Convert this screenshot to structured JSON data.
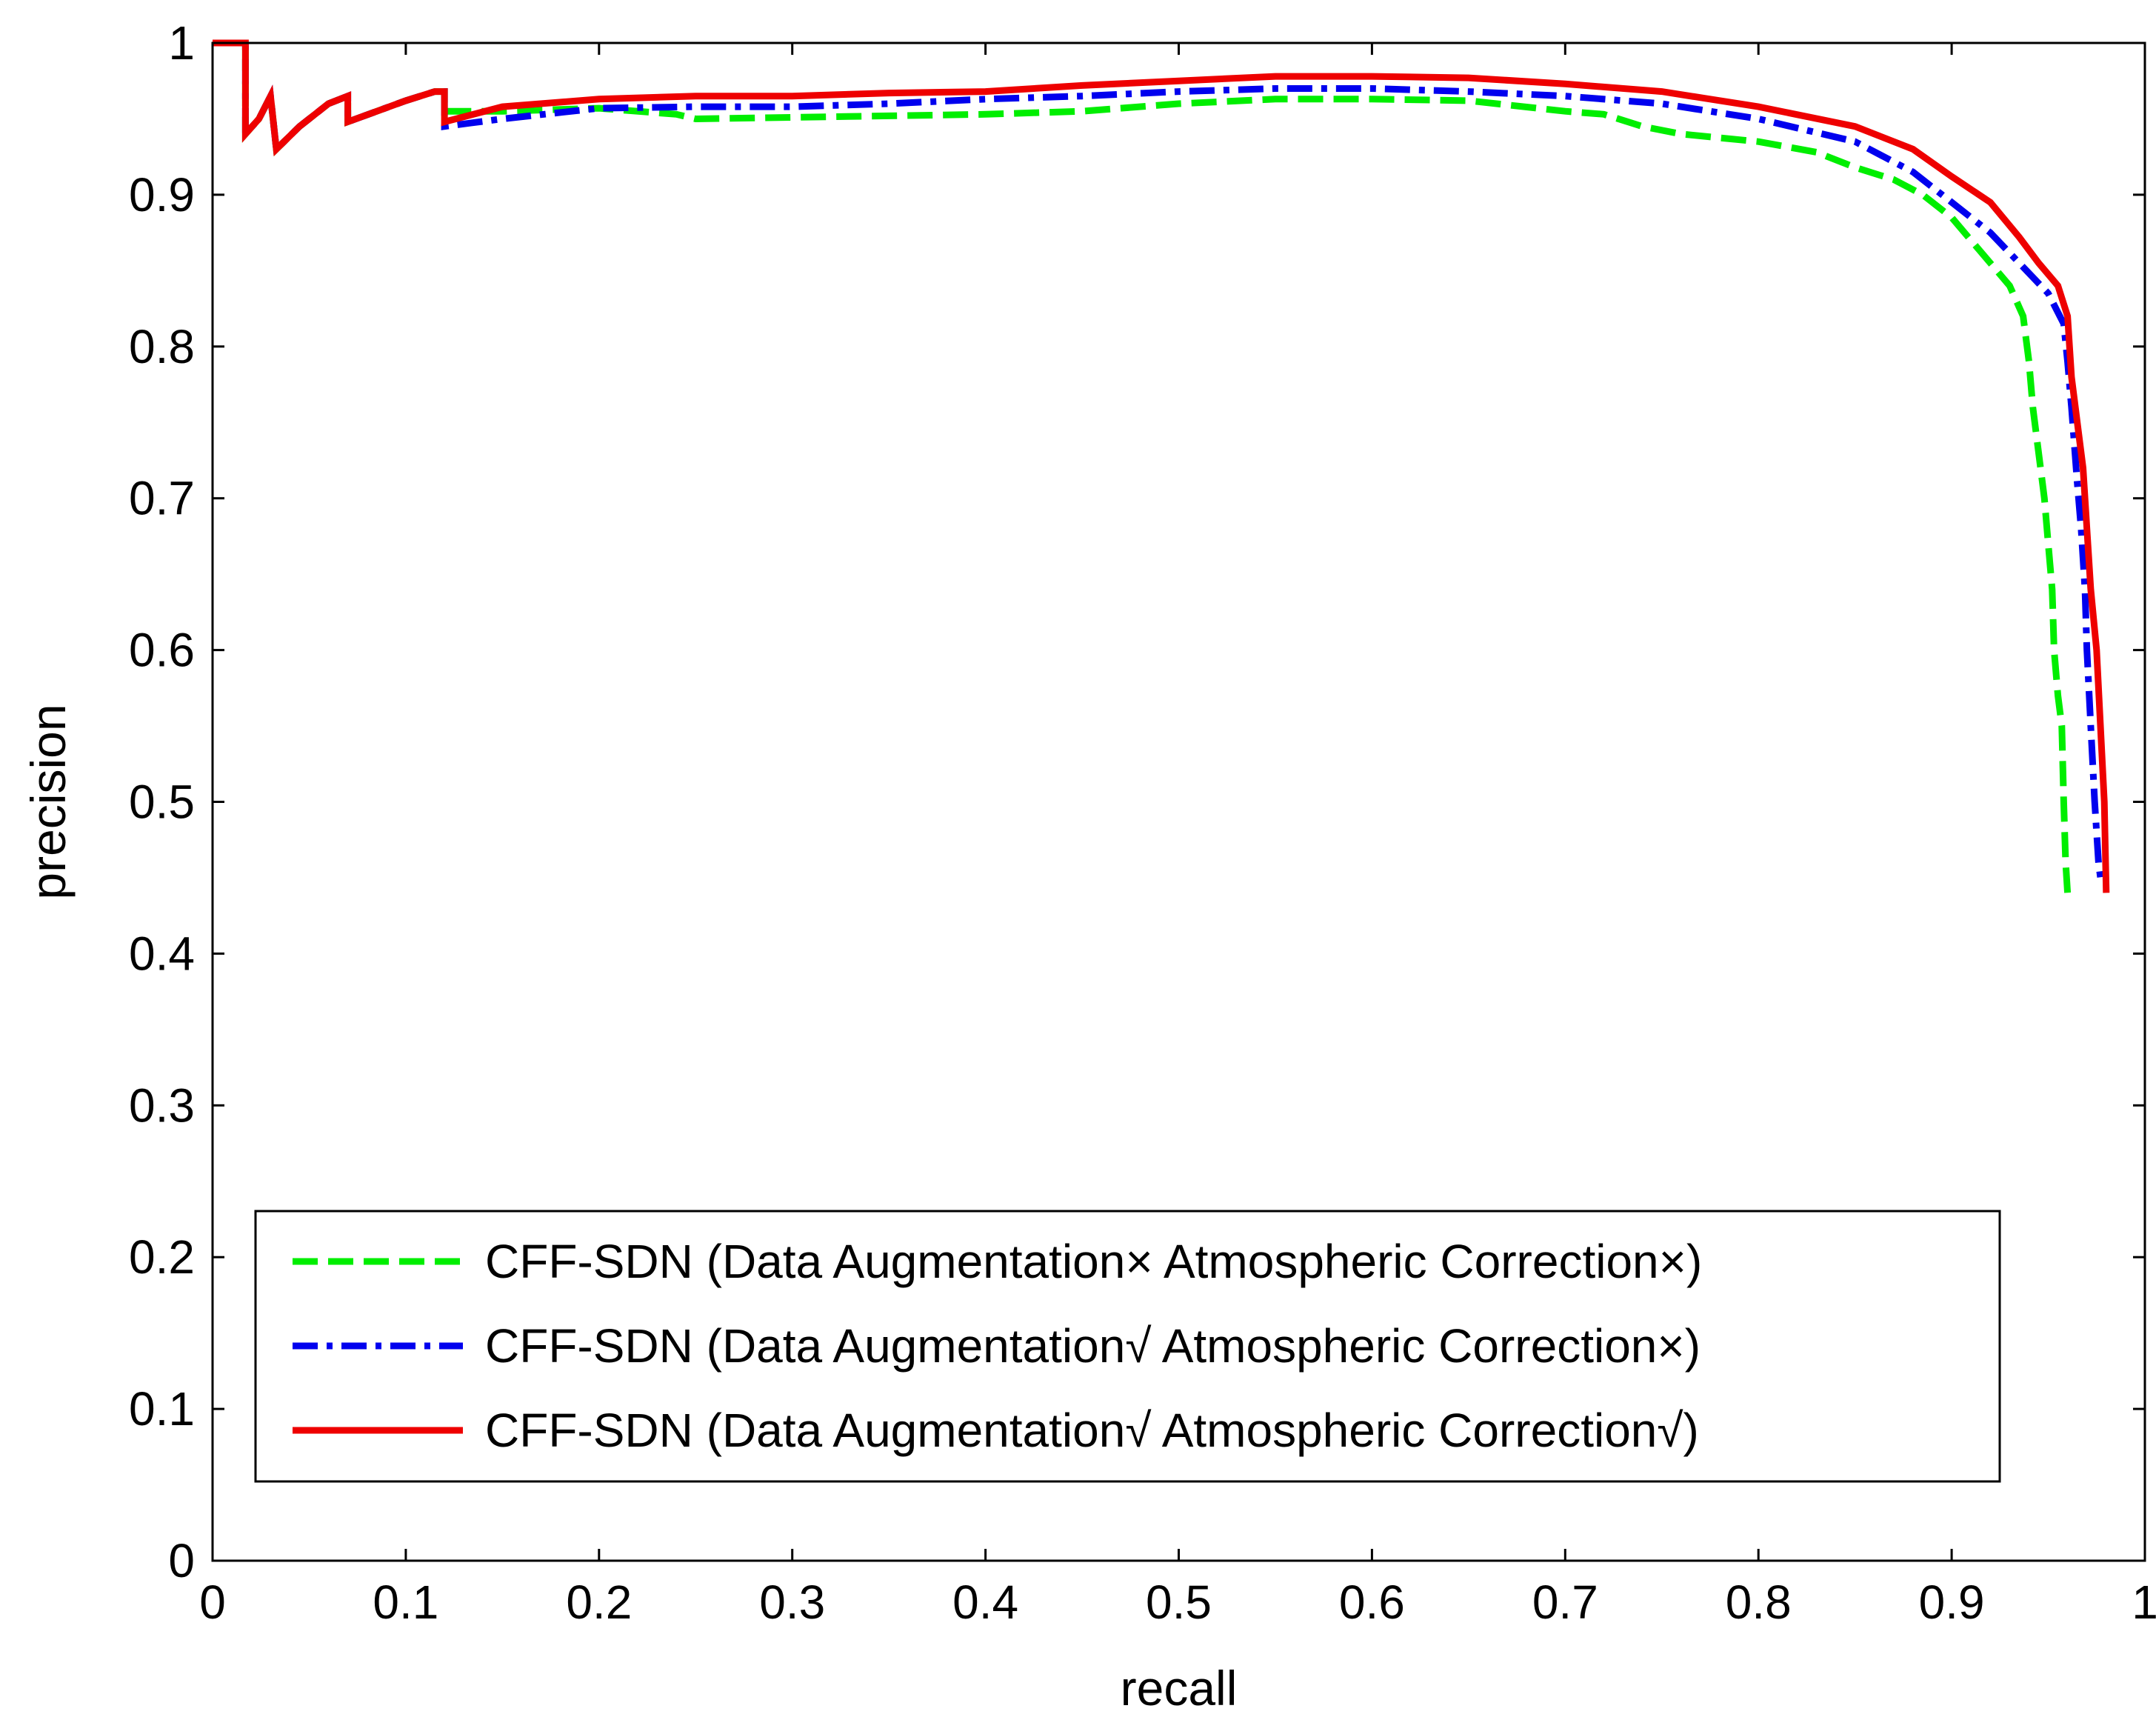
{
  "chart_data": {
    "type": "line",
    "xlabel": "recall",
    "ylabel": "precision",
    "xlim": [
      0,
      1
    ],
    "ylim": [
      0,
      1
    ],
    "x_ticks": [
      "0",
      "0.1",
      "0.2",
      "0.3",
      "0.4",
      "0.5",
      "0.6",
      "0.7",
      "0.8",
      "0.9",
      "1"
    ],
    "y_ticks": [
      "0",
      "0.1",
      "0.2",
      "0.3",
      "0.4",
      "0.5",
      "0.6",
      "0.7",
      "0.8",
      "0.9",
      "1"
    ],
    "grid": false,
    "legend_position": "bottom",
    "series": [
      {
        "name": "CFF-SDN (Data Augmentation× Atmospheric Correction×)",
        "color": "#00ee00",
        "dash": "dashed",
        "points": [
          [
            0.0,
            1.0
          ],
          [
            0.017,
            1.0
          ],
          [
            0.017,
            0.94
          ],
          [
            0.024,
            0.95
          ],
          [
            0.03,
            0.965
          ],
          [
            0.033,
            0.93
          ],
          [
            0.045,
            0.945
          ],
          [
            0.06,
            0.96
          ],
          [
            0.07,
            0.965
          ],
          [
            0.07,
            0.948
          ],
          [
            0.085,
            0.955
          ],
          [
            0.1,
            0.962
          ],
          [
            0.115,
            0.968
          ],
          [
            0.12,
            0.968
          ],
          [
            0.12,
            0.955
          ],
          [
            0.15,
            0.955
          ],
          [
            0.2,
            0.957
          ],
          [
            0.24,
            0.953
          ],
          [
            0.25,
            0.95
          ],
          [
            0.3,
            0.951
          ],
          [
            0.35,
            0.952
          ],
          [
            0.4,
            0.953
          ],
          [
            0.45,
            0.955
          ],
          [
            0.5,
            0.96
          ],
          [
            0.55,
            0.963
          ],
          [
            0.6,
            0.963
          ],
          [
            0.65,
            0.962
          ],
          [
            0.7,
            0.955
          ],
          [
            0.72,
            0.953
          ],
          [
            0.74,
            0.945
          ],
          [
            0.76,
            0.94
          ],
          [
            0.8,
            0.935
          ],
          [
            0.83,
            0.928
          ],
          [
            0.85,
            0.918
          ],
          [
            0.87,
            0.91
          ],
          [
            0.885,
            0.9
          ],
          [
            0.9,
            0.885
          ],
          [
            0.91,
            0.87
          ],
          [
            0.92,
            0.855
          ],
          [
            0.93,
            0.84
          ],
          [
            0.937,
            0.82
          ],
          [
            0.94,
            0.79
          ],
          [
            0.942,
            0.76
          ],
          [
            0.945,
            0.73
          ],
          [
            0.948,
            0.7
          ],
          [
            0.95,
            0.67
          ],
          [
            0.952,
            0.64
          ],
          [
            0.953,
            0.6
          ],
          [
            0.955,
            0.57
          ],
          [
            0.957,
            0.55
          ],
          [
            0.958,
            0.5
          ],
          [
            0.959,
            0.46
          ],
          [
            0.96,
            0.44
          ]
        ]
      },
      {
        "name": "CFF-SDN (Data Augmentation√ Atmospheric Correction×)",
        "color": "#0000ee",
        "dash": "dashdot",
        "points": [
          [
            0.0,
            1.0
          ],
          [
            0.017,
            1.0
          ],
          [
            0.017,
            0.94
          ],
          [
            0.024,
            0.95
          ],
          [
            0.03,
            0.965
          ],
          [
            0.033,
            0.93
          ],
          [
            0.045,
            0.945
          ],
          [
            0.06,
            0.96
          ],
          [
            0.07,
            0.965
          ],
          [
            0.07,
            0.948
          ],
          [
            0.085,
            0.955
          ],
          [
            0.1,
            0.962
          ],
          [
            0.115,
            0.968
          ],
          [
            0.12,
            0.968
          ],
          [
            0.12,
            0.945
          ],
          [
            0.15,
            0.95
          ],
          [
            0.2,
            0.957
          ],
          [
            0.25,
            0.958
          ],
          [
            0.3,
            0.958
          ],
          [
            0.35,
            0.96
          ],
          [
            0.4,
            0.963
          ],
          [
            0.45,
            0.965
          ],
          [
            0.5,
            0.968
          ],
          [
            0.55,
            0.97
          ],
          [
            0.6,
            0.97
          ],
          [
            0.65,
            0.968
          ],
          [
            0.7,
            0.965
          ],
          [
            0.75,
            0.96
          ],
          [
            0.8,
            0.95
          ],
          [
            0.85,
            0.935
          ],
          [
            0.88,
            0.915
          ],
          [
            0.9,
            0.895
          ],
          [
            0.92,
            0.875
          ],
          [
            0.935,
            0.855
          ],
          [
            0.95,
            0.835
          ],
          [
            0.958,
            0.815
          ],
          [
            0.96,
            0.79
          ],
          [
            0.962,
            0.76
          ],
          [
            0.965,
            0.71
          ],
          [
            0.967,
            0.68
          ],
          [
            0.969,
            0.64
          ],
          [
            0.97,
            0.6
          ],
          [
            0.972,
            0.55
          ],
          [
            0.974,
            0.5
          ],
          [
            0.976,
            0.46
          ],
          [
            0.977,
            0.45
          ]
        ]
      },
      {
        "name": "CFF-SDN (Data Augmentation√ Atmospheric Correction√)",
        "color": "#ee0000",
        "dash": "solid",
        "points": [
          [
            0.0,
            1.0
          ],
          [
            0.017,
            1.0
          ],
          [
            0.017,
            0.94
          ],
          [
            0.024,
            0.95
          ],
          [
            0.03,
            0.965
          ],
          [
            0.033,
            0.93
          ],
          [
            0.045,
            0.945
          ],
          [
            0.06,
            0.96
          ],
          [
            0.07,
            0.965
          ],
          [
            0.07,
            0.948
          ],
          [
            0.085,
            0.955
          ],
          [
            0.1,
            0.962
          ],
          [
            0.115,
            0.968
          ],
          [
            0.12,
            0.968
          ],
          [
            0.12,
            0.948
          ],
          [
            0.15,
            0.958
          ],
          [
            0.2,
            0.963
          ],
          [
            0.25,
            0.965
          ],
          [
            0.3,
            0.965
          ],
          [
            0.35,
            0.967
          ],
          [
            0.4,
            0.968
          ],
          [
            0.45,
            0.972
          ],
          [
            0.5,
            0.975
          ],
          [
            0.55,
            0.978
          ],
          [
            0.6,
            0.978
          ],
          [
            0.65,
            0.977
          ],
          [
            0.7,
            0.973
          ],
          [
            0.75,
            0.968
          ],
          [
            0.8,
            0.958
          ],
          [
            0.85,
            0.945
          ],
          [
            0.88,
            0.93
          ],
          [
            0.9,
            0.912
          ],
          [
            0.92,
            0.895
          ],
          [
            0.935,
            0.872
          ],
          [
            0.945,
            0.855
          ],
          [
            0.955,
            0.84
          ],
          [
            0.96,
            0.82
          ],
          [
            0.962,
            0.78
          ],
          [
            0.965,
            0.75
          ],
          [
            0.968,
            0.72
          ],
          [
            0.97,
            0.68
          ],
          [
            0.972,
            0.64
          ],
          [
            0.975,
            0.6
          ],
          [
            0.977,
            0.55
          ],
          [
            0.979,
            0.5
          ],
          [
            0.98,
            0.44
          ]
        ]
      }
    ]
  }
}
